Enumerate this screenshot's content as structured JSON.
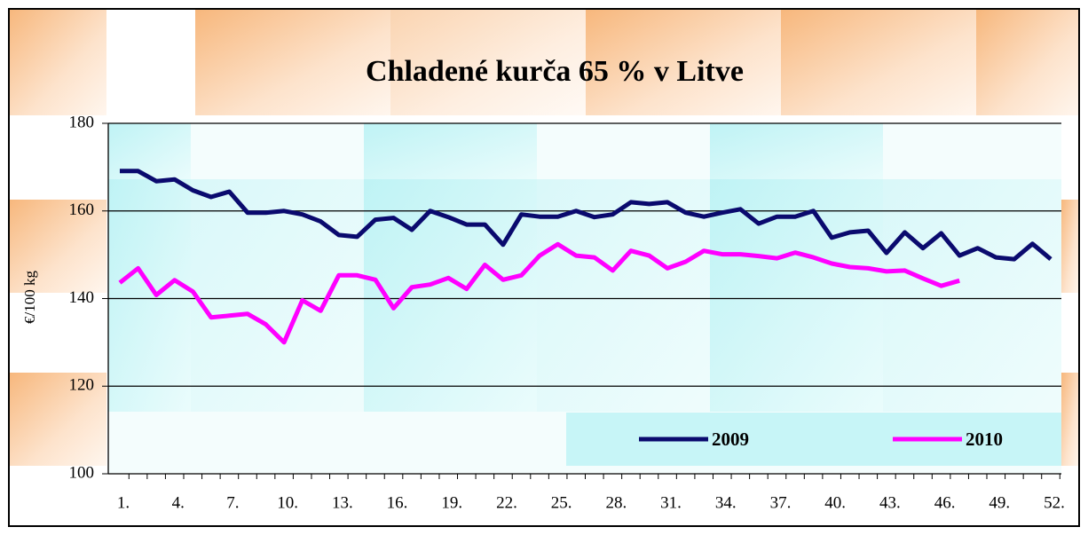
{
  "chart_data": {
    "type": "line",
    "title": "Chladené kurča 65 % v Litve",
    "ylabel": "€/100 kg",
    "categories": [
      "1.",
      null,
      null,
      "4.",
      null,
      null,
      "7.",
      null,
      null,
      "10.",
      null,
      null,
      "13.",
      null,
      null,
      "16.",
      null,
      null,
      "19.",
      null,
      null,
      "22.",
      null,
      null,
      "25.",
      null,
      null,
      "28.",
      null,
      null,
      "31.",
      null,
      null,
      "34.",
      null,
      null,
      "37.",
      null,
      null,
      "40.",
      null,
      null,
      "43.",
      null,
      null,
      "46.",
      null,
      null,
      "49.",
      null,
      null,
      "52."
    ],
    "series": [
      {
        "name": "2009",
        "color": "#0a0a6e",
        "values": [
          169.1,
          169.1,
          166.8,
          167.2,
          164.7,
          163.2,
          164.4,
          159.6,
          159.6,
          160.0,
          159.2,
          157.6,
          154.5,
          154.1,
          158.0,
          158.4,
          155.7,
          160.0,
          158.6,
          156.9,
          156.9,
          152.3,
          159.2,
          158.7,
          158.7,
          160.0,
          158.6,
          159.2,
          162.0,
          161.6,
          162.0,
          159.6,
          158.7,
          159.6,
          160.4,
          157.1,
          158.7,
          158.7,
          160.0,
          153.9,
          155.1,
          155.5,
          150.4,
          155.1,
          151.5,
          154.9,
          149.8,
          151.5,
          149.4,
          149.0,
          152.5,
          149.0
        ]
      },
      {
        "name": "2010",
        "color": "#ff00ff",
        "values": [
          143.6,
          146.9,
          140.8,
          144.2,
          141.6,
          135.7,
          136.1,
          136.5,
          134.1,
          130.0,
          139.6,
          137.2,
          145.3,
          145.3,
          144.3,
          137.8,
          142.6,
          143.2,
          144.7,
          142.2,
          147.7,
          144.3,
          145.3,
          149.8,
          152.4,
          149.8,
          149.4,
          146.4,
          150.9,
          149.8,
          146.9,
          148.4,
          150.9,
          150.1,
          150.1,
          149.7,
          149.2,
          150.5,
          149.4,
          148.0,
          147.2,
          146.9,
          146.2,
          146.4,
          144.6,
          142.9,
          144.1,
          null,
          null,
          null,
          null,
          null
        ]
      }
    ],
    "ylim": [
      100,
      180
    ],
    "yticks": [
      100,
      120,
      140,
      160,
      180
    ],
    "grid": true,
    "legend": "bottom-right"
  }
}
